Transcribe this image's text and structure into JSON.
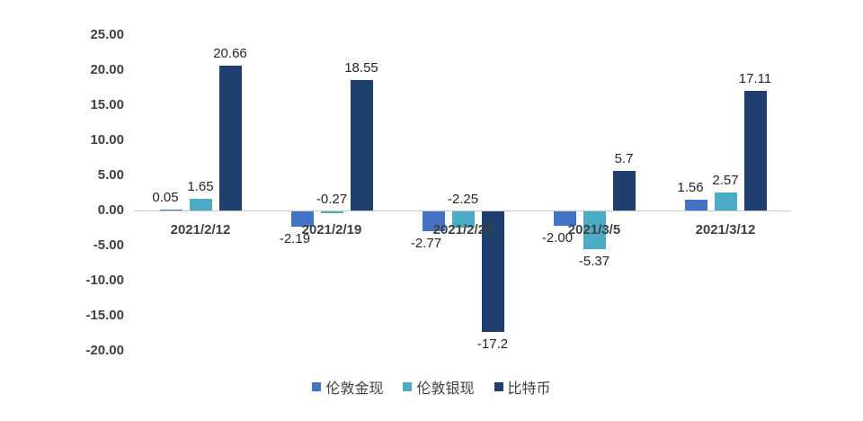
{
  "chart_data": {
    "type": "bar",
    "title": "",
    "xlabel": "",
    "ylabel": "",
    "ylim": [
      -20,
      25
    ],
    "yticks": [
      "25.00",
      "20.00",
      "15.00",
      "10.00",
      "5.00",
      "0.00",
      "-5.00",
      "-10.00",
      "-15.00",
      "-20.00"
    ],
    "categories": [
      "2021/2/12",
      "2021/2/19",
      "2021/2/26",
      "2021/3/5",
      "2021/3/12"
    ],
    "series": [
      {
        "name": "伦敦金现",
        "color": "#4472c4",
        "values": [
          0.05,
          -2.19,
          -2.77,
          -2.0,
          1.56
        ],
        "labels": [
          "0.05",
          "-2.19",
          "-2.77",
          "-2.00",
          "1.56"
        ]
      },
      {
        "name": "伦敦银现",
        "color": "#4bacc6",
        "values": [
          1.65,
          -0.27,
          -2.25,
          -5.37,
          2.57
        ],
        "labels": [
          "1.65",
          "-0.27",
          "-2.25",
          "-5.37",
          "2.57"
        ]
      },
      {
        "name": "比特币",
        "color": "#1f3f6e",
        "values": [
          20.66,
          18.55,
          -17.2,
          5.7,
          17.11
        ],
        "labels": [
          "20.66",
          "18.55",
          "-17.2",
          "5.7",
          "17.11"
        ]
      }
    ],
    "grid": false,
    "legend_position": "bottom"
  }
}
